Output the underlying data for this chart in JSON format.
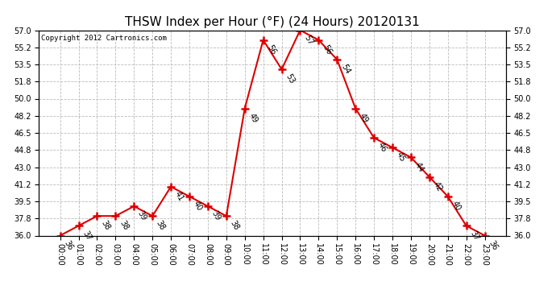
{
  "title": "THSW Index per Hour (°F) (24 Hours) 20120131",
  "copyright": "Copyright 2012 Cartronics.com",
  "hours": [
    "00:00",
    "01:00",
    "02:00",
    "03:00",
    "04:00",
    "05:00",
    "06:00",
    "07:00",
    "08:00",
    "09:00",
    "10:00",
    "11:00",
    "12:00",
    "13:00",
    "14:00",
    "15:00",
    "16:00",
    "17:00",
    "18:00",
    "19:00",
    "20:00",
    "21:00",
    "22:00",
    "23:00"
  ],
  "values": [
    36,
    37,
    38,
    38,
    39,
    38,
    41,
    40,
    39,
    38,
    49,
    56,
    53,
    57,
    56,
    54,
    49,
    46,
    45,
    44,
    42,
    40,
    37,
    36
  ],
  "ylim_min": 36.0,
  "ylim_max": 57.0,
  "yticks": [
    36.0,
    37.8,
    39.5,
    41.2,
    43.0,
    44.8,
    46.5,
    48.2,
    50.0,
    51.8,
    53.5,
    55.2,
    57.0
  ],
  "line_color": "#dd0000",
  "marker": "+",
  "marker_color": "#dd0000",
  "bg_color": "#ffffff",
  "plot_bg_color": "#ffffff",
  "grid_color": "#bbbbbb",
  "title_fontsize": 11,
  "copyright_fontsize": 6.5,
  "tick_fontsize": 7,
  "annot_fontsize": 7
}
